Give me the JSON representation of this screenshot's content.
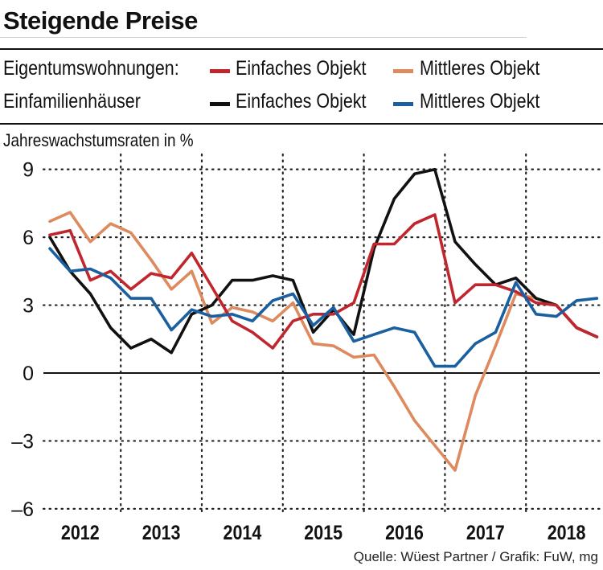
{
  "title": "Steigende Preise",
  "legend": {
    "group1_label": "Eigentumswohnungen:",
    "group2_label": "Einfamilienhäuser",
    "items": [
      {
        "label": "Einfaches Objekt",
        "color": "#c0262d"
      },
      {
        "label": "Mittleres Objekt",
        "color": "#dd8a5e"
      },
      {
        "label": "Einfaches Objekt",
        "color": "#111111"
      },
      {
        "label": "Mittleres Objekt",
        "color": "#1a5fa0"
      }
    ]
  },
  "source": "Quelle: Wüest Partner / Grafik: FuW, mg",
  "chart_data": {
    "type": "line",
    "title": "Steigende Preise",
    "ylabel": "Jahreswachstumsraten in %",
    "xlabel": "",
    "ylim": [
      -6,
      9.5
    ],
    "xlim": [
      0,
      27.5
    ],
    "yticks": [
      "9",
      "6",
      "3",
      "0",
      "–3",
      "–6"
    ],
    "ytick_values": [
      9,
      6,
      3,
      0,
      -3,
      -6
    ],
    "x_labels": [
      "2012",
      "2013",
      "2014",
      "2015",
      "2016",
      "2017",
      "2018"
    ],
    "x_label_positions": [
      1.5,
      5.5,
      9.5,
      13.5,
      17.5,
      21.5,
      25.5
    ],
    "year_boundaries": [
      3.5,
      7.5,
      11.5,
      15.5,
      19.5,
      23.5
    ],
    "grid": "dotted",
    "series": [
      {
        "name": "Eigentumswohnungen: Mittleres Objekt",
        "color": "#dd8a5e",
        "values": [
          6.7,
          7.1,
          5.8,
          6.6,
          6.2,
          5.0,
          3.7,
          4.5,
          2.2,
          2.9,
          2.7,
          2.3,
          3.1,
          1.3,
          1.2,
          0.7,
          0.8,
          -0.6,
          -2.1,
          -3.2,
          -4.3,
          -1.0,
          1.2,
          3.5,
          3.3,
          3.0,
          2.0,
          1.6
        ]
      },
      {
        "name": "Einfamilienhäuser: Einfaches Objekt",
        "color": "#111111",
        "values": [
          6.0,
          4.5,
          3.5,
          2.0,
          1.1,
          1.5,
          0.9,
          2.6,
          3.0,
          4.1,
          4.1,
          4.3,
          4.1,
          1.8,
          2.8,
          1.7,
          5.5,
          7.7,
          8.8,
          9.0,
          5.8,
          4.8,
          3.9,
          4.2,
          3.3,
          3.0,
          2.0,
          1.6
        ]
      },
      {
        "name": "Eigentumswohnungen: Einfaches Objekt",
        "color": "#c0262d",
        "values": [
          6.1,
          6.3,
          4.1,
          4.5,
          3.7,
          4.4,
          4.2,
          5.3,
          3.8,
          2.3,
          1.8,
          1.1,
          2.3,
          2.6,
          2.6,
          3.1,
          5.7,
          5.7,
          6.6,
          7.0,
          3.1,
          3.9,
          3.9,
          3.6,
          3.1,
          3.0,
          2.0,
          1.6
        ]
      },
      {
        "name": "Einfamilienhäuser: Mittleres Objekt",
        "color": "#1a5fa0",
        "values": [
          5.5,
          4.5,
          4.6,
          4.2,
          3.3,
          3.3,
          1.9,
          2.8,
          2.5,
          2.6,
          2.3,
          3.2,
          3.5,
          2.1,
          2.9,
          1.4,
          1.7,
          2.0,
          1.8,
          0.3,
          0.3,
          1.3,
          1.8,
          4.0,
          2.6,
          2.5,
          3.2,
          3.3
        ]
      }
    ]
  }
}
